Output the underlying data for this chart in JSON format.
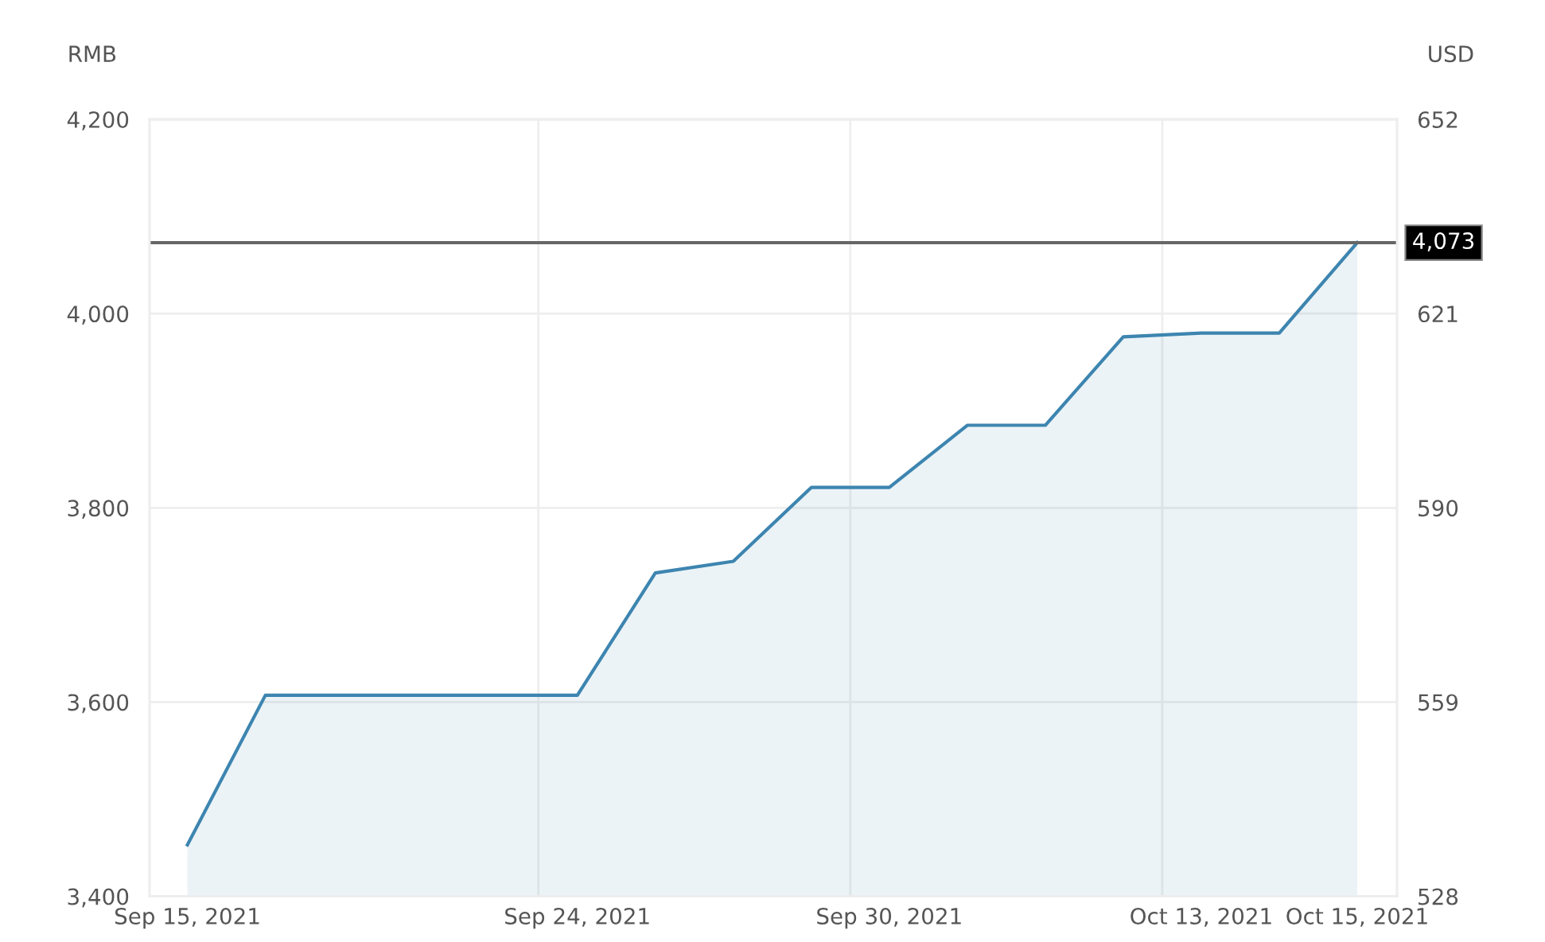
{
  "chart_data": {
    "type": "area",
    "ylabel": "RMB",
    "y2label": "USD",
    "categories": [
      "Sep 15, 2021",
      null,
      null,
      null,
      null,
      "Sep 24, 2021",
      null,
      null,
      null,
      "Sep 30, 2021",
      null,
      null,
      null,
      "Oct 13, 2021",
      null,
      "Oct 15, 2021"
    ],
    "series": [
      {
        "color": "#3d85b0",
        "values": [
          3453,
          3607,
          3607,
          3607,
          3607,
          3607,
          3733,
          3745,
          3821,
          3821,
          3885,
          3885,
          3976,
          3980,
          3980,
          4073
        ]
      }
    ],
    "ylim": [
      3400,
      4200
    ],
    "yticks": [
      {
        "value": 3400,
        "label": "3,400"
      },
      {
        "value": 3600,
        "label": "3,600"
      },
      {
        "value": 3800,
        "label": "3,800"
      },
      {
        "value": 4000,
        "label": "4,000"
      },
      {
        "value": 4200,
        "label": "4,200"
      }
    ],
    "y2lim": [
      528,
      652
    ],
    "y2ticks": [
      528,
      559,
      590,
      621,
      652
    ],
    "ref_lines": [
      {
        "axis": "y",
        "value": 4073,
        "label": "4,073",
        "color": "#666666"
      }
    ],
    "grid": true
  }
}
